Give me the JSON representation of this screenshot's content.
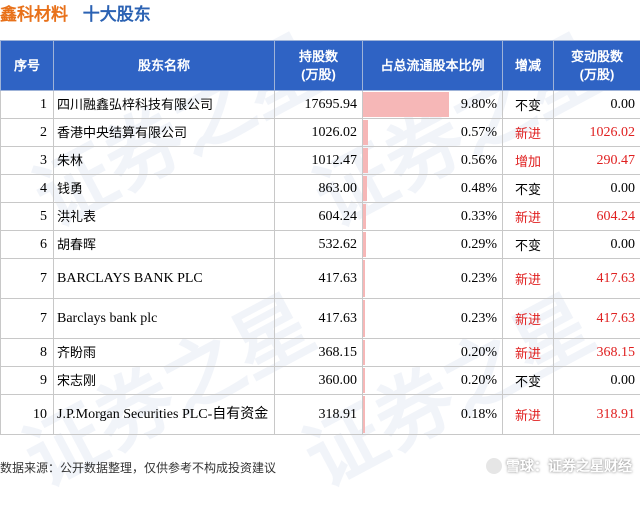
{
  "title": {
    "company": "鑫科材料",
    "subtitle": "十大股东"
  },
  "table": {
    "headers": {
      "rank": "序号",
      "name": "股东名称",
      "shares": "持股数\n(万股)",
      "ratio": "占总流通股本比例",
      "change": "增减",
      "change_shares": "变动股数\n(万股)"
    },
    "rows": [
      {
        "rank": "1",
        "name": "四川融鑫弘梓科技有限公司",
        "shares": "17695.94",
        "ratio": "9.80%",
        "ratio_value": 9.8,
        "change": "不变",
        "change_shares": "0.00",
        "highlight": false,
        "en": false
      },
      {
        "rank": "2",
        "name": "香港中央结算有限公司",
        "shares": "1026.02",
        "ratio": "0.57%",
        "ratio_value": 0.57,
        "change": "新进",
        "change_shares": "1026.02",
        "highlight": true,
        "en": false
      },
      {
        "rank": "3",
        "name": "朱林",
        "shares": "1012.47",
        "ratio": "0.56%",
        "ratio_value": 0.56,
        "change": "增加",
        "change_shares": "290.47",
        "highlight": true,
        "en": false
      },
      {
        "rank": "4",
        "name": "钱勇",
        "shares": "863.00",
        "ratio": "0.48%",
        "ratio_value": 0.48,
        "change": "不变",
        "change_shares": "0.00",
        "highlight": false,
        "en": false
      },
      {
        "rank": "5",
        "name": "洪礼表",
        "shares": "604.24",
        "ratio": "0.33%",
        "ratio_value": 0.33,
        "change": "新进",
        "change_shares": "604.24",
        "highlight": true,
        "en": false
      },
      {
        "rank": "6",
        "name": "胡春晖",
        "shares": "532.62",
        "ratio": "0.29%",
        "ratio_value": 0.29,
        "change": "不变",
        "change_shares": "0.00",
        "highlight": false,
        "en": false
      },
      {
        "rank": "7",
        "name": "BARCLAYS BANK PLC",
        "shares": "417.63",
        "ratio": "0.23%",
        "ratio_value": 0.23,
        "change": "新进",
        "change_shares": "417.63",
        "highlight": true,
        "en": true
      },
      {
        "rank": "7",
        "name": "Barclays bank plc",
        "shares": "417.63",
        "ratio": "0.23%",
        "ratio_value": 0.23,
        "change": "新进",
        "change_shares": "417.63",
        "highlight": true,
        "en": true
      },
      {
        "rank": "8",
        "name": "齐盼雨",
        "shares": "368.15",
        "ratio": "0.20%",
        "ratio_value": 0.2,
        "change": "新进",
        "change_shares": "368.15",
        "highlight": true,
        "en": false
      },
      {
        "rank": "9",
        "name": "宋志刚",
        "shares": "360.00",
        "ratio": "0.20%",
        "ratio_value": 0.2,
        "change": "不变",
        "change_shares": "0.00",
        "highlight": false,
        "en": false
      },
      {
        "rank": "10",
        "name": "J.P.Morgan Securities PLC-自有资金",
        "shares": "318.91",
        "ratio": "0.18%",
        "ratio_value": 0.18,
        "change": "新进",
        "change_shares": "318.91",
        "highlight": true,
        "en": true
      }
    ]
  },
  "watermark": "证券之星",
  "footer": {
    "source": "数据来源：公开数据整理，仅供参考不构成投资建议",
    "brand": "雪球：证券之星财经"
  },
  "colors": {
    "header_bg": "#2f63c4",
    "bar": "#f6b7b7",
    "highlight": "#e02020",
    "company": "#e8711a",
    "subtitle": "#2b62b3"
  }
}
